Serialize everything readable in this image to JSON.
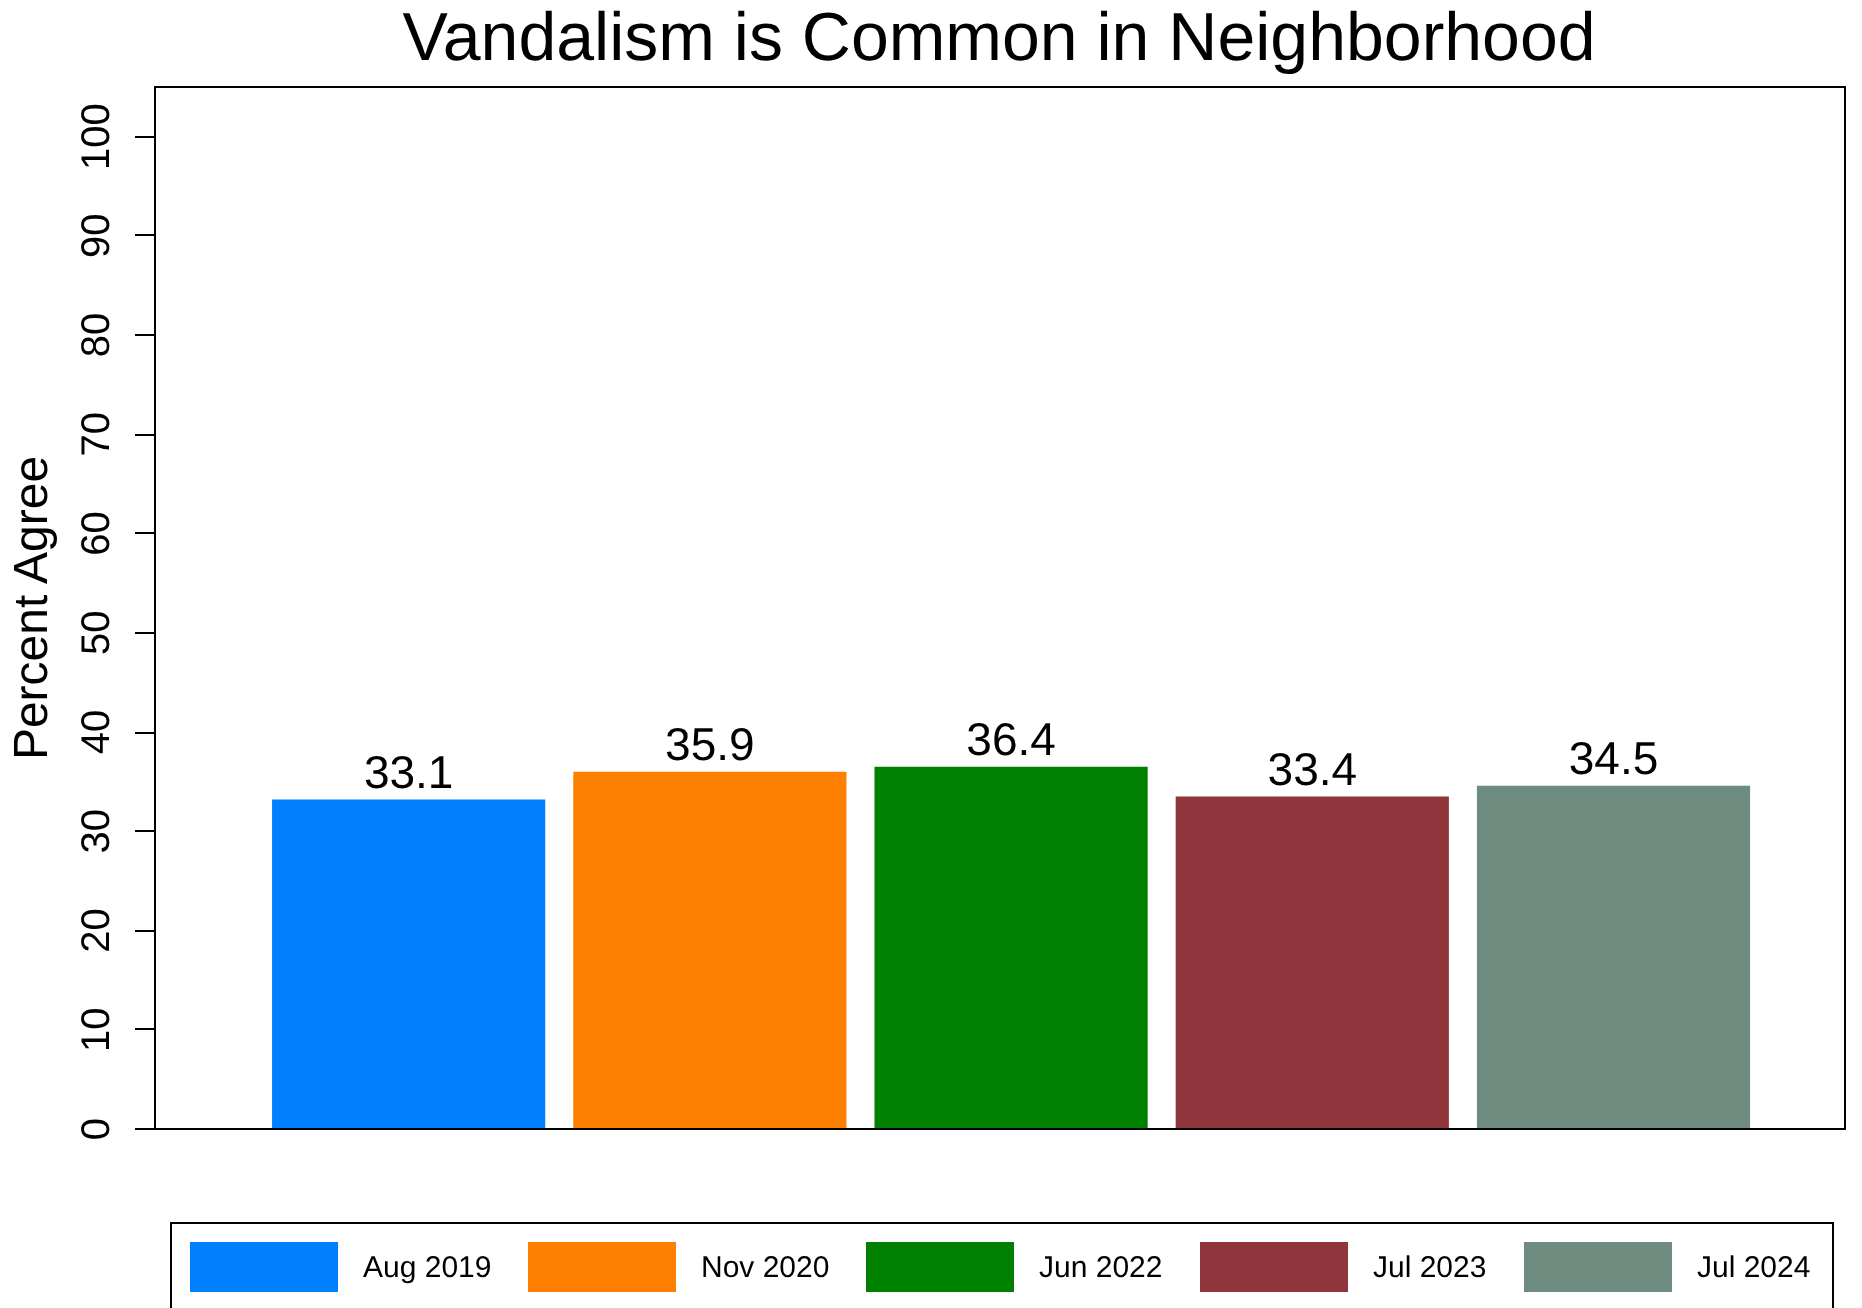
{
  "chart_data": {
    "type": "bar",
    "title": "Vandalism is Common in Neighborhood",
    "ylabel": "Percent Agree",
    "categories": [
      null
    ],
    "series": [
      {
        "name": "Aug 2019",
        "color": "#0080ff",
        "values": [
          33.1
        ]
      },
      {
        "name": "Nov 2020",
        "color": "#ff8000",
        "values": [
          35.9
        ]
      },
      {
        "name": "Jun 2022",
        "color": "#008000",
        "values": [
          36.4
        ]
      },
      {
        "name": "Jul 2023",
        "color": "#90353b",
        "values": [
          33.4
        ]
      },
      {
        "name": "Jul 2024",
        "color": "#6e8b7f",
        "values": [
          34.5
        ]
      }
    ],
    "ylim": [
      0,
      105
    ],
    "yticks": [
      0,
      10,
      20,
      30,
      40,
      50,
      60,
      70,
      80,
      90,
      100
    ],
    "data_labels": true,
    "legend": "bottom",
    "grid": false
  }
}
